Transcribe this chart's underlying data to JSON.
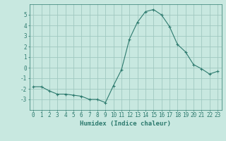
{
  "x": [
    0,
    1,
    2,
    3,
    4,
    5,
    6,
    7,
    8,
    9,
    10,
    11,
    12,
    13,
    14,
    15,
    16,
    17,
    18,
    19,
    20,
    21,
    22,
    23
  ],
  "y": [
    -1.8,
    -1.8,
    -2.2,
    -2.5,
    -2.5,
    -2.6,
    -2.7,
    -3.0,
    -3.0,
    -3.3,
    -1.7,
    -0.2,
    2.7,
    4.3,
    5.3,
    5.5,
    5.0,
    3.9,
    2.2,
    1.5,
    0.3,
    -0.1,
    -0.6,
    -0.35
  ],
  "line_color": "#2d7a6e",
  "marker": "+",
  "bg_color": "#c8e8e0",
  "grid_color": "#a0c8c0",
  "xlabel": "Humidex (Indice chaleur)",
  "ylim": [
    -4,
    6
  ],
  "xlim": [
    -0.5,
    23.5
  ],
  "yticks": [
    -3,
    -2,
    -1,
    0,
    1,
    2,
    3,
    4,
    5
  ],
  "xticks": [
    0,
    1,
    2,
    3,
    4,
    5,
    6,
    7,
    8,
    9,
    10,
    11,
    12,
    13,
    14,
    15,
    16,
    17,
    18,
    19,
    20,
    21,
    22,
    23
  ],
  "tick_label_fontsize": 5.5,
  "xlabel_fontsize": 6.5
}
